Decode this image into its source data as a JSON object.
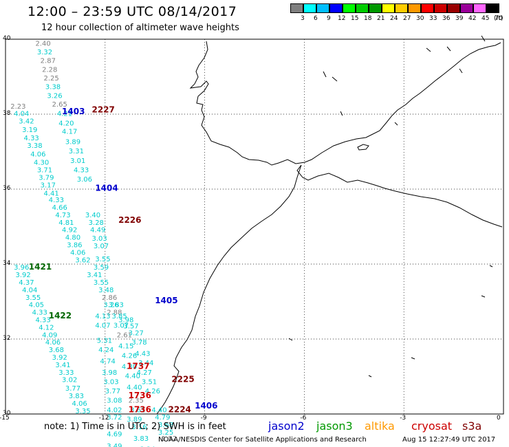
{
  "title": "12:00 – 23:59 UTC 08/14/2017",
  "subtitle": "12 hour collection of altimeter wave heights",
  "color_scale": {
    "unit": "(ft)",
    "bins": [
      {
        "label": "3",
        "color": "#7f7f7f"
      },
      {
        "label": "6",
        "color": "#00ffff"
      },
      {
        "label": "9",
        "color": "#00bfff"
      },
      {
        "label": "12",
        "color": "#0000ff"
      },
      {
        "label": "15",
        "color": "#00ff00"
      },
      {
        "label": "18",
        "color": "#00cc00"
      },
      {
        "label": "21",
        "color": "#009900"
      },
      {
        "label": "24",
        "color": "#ffff00"
      },
      {
        "label": "27",
        "color": "#ffcc00"
      },
      {
        "label": "30",
        "color": "#ff9900"
      },
      {
        "label": "33",
        "color": "#ff0000"
      },
      {
        "label": "36",
        "color": "#cc0000"
      },
      {
        "label": "39",
        "color": "#990000"
      },
      {
        "label": "42",
        "color": "#990099"
      },
      {
        "label": "45",
        "color": "#ff66ff"
      },
      {
        "label": "70",
        "color": "#000000"
      }
    ]
  },
  "axes": {
    "lat_ticks": [
      "40",
      "38",
      "36",
      "34",
      "32",
      "30"
    ],
    "lon_ticks": [
      "-15",
      "-12",
      "-9",
      "-6",
      "-3",
      "0"
    ]
  },
  "pass_times": [
    {
      "label": "1403",
      "color": "#0000cc",
      "lon": -13.3,
      "lat": 38.0
    },
    {
      "label": "2227",
      "color": "#800000",
      "lon": -12.4,
      "lat": 38.05
    },
    {
      "label": "1404",
      "color": "#0000cc",
      "lon": -12.3,
      "lat": 35.95
    },
    {
      "label": "2226",
      "color": "#800000",
      "lon": -11.6,
      "lat": 35.1
    },
    {
      "label": "1421",
      "color": "#006600",
      "lon": -14.3,
      "lat": 33.85
    },
    {
      "label": "1405",
      "color": "#0000cc",
      "lon": -10.5,
      "lat": 32.95
    },
    {
      "label": "1422",
      "color": "#006600",
      "lon": -13.7,
      "lat": 32.55
    },
    {
      "label": "1737",
      "color": "#cc0000",
      "lon": -11.35,
      "lat": 31.2
    },
    {
      "label": "2225",
      "color": "#800000",
      "lon": -10.0,
      "lat": 30.85
    },
    {
      "label": "1736",
      "color": "#cc0000",
      "lon": -11.3,
      "lat": 30.42
    },
    {
      "label": "1406",
      "color": "#0000cc",
      "lon": -9.3,
      "lat": 30.15
    },
    {
      "label": "1736",
      "color": "#cc0000",
      "lon": -11.3,
      "lat": 30.05
    },
    {
      "label": "2224",
      "color": "#800000",
      "lon": -10.1,
      "lat": 30.05
    }
  ],
  "wave_heights": [
    {
      "v": "2.40",
      "lon": -14.1,
      "lat": 39.83,
      "c": "#7f7f7f"
    },
    {
      "v": "3.32",
      "lon": -14.05,
      "lat": 39.6,
      "c": "#00cccc"
    },
    {
      "v": "2.87",
      "lon": -13.95,
      "lat": 39.37,
      "c": "#7f7f7f"
    },
    {
      "v": "2.28",
      "lon": -13.9,
      "lat": 39.13,
      "c": "#7f7f7f"
    },
    {
      "v": "2.25",
      "lon": -13.85,
      "lat": 38.9,
      "c": "#7f7f7f"
    },
    {
      "v": "3.38",
      "lon": -13.8,
      "lat": 38.67,
      "c": "#00cccc"
    },
    {
      "v": "3.26",
      "lon": -13.75,
      "lat": 38.43,
      "c": "#00cccc"
    },
    {
      "v": "2.65",
      "lon": -13.6,
      "lat": 38.2,
      "c": "#7f7f7f"
    },
    {
      "v": "2.23",
      "lon": -14.85,
      "lat": 38.15,
      "c": "#7f7f7f"
    },
    {
      "v": "4.04",
      "lon": -14.75,
      "lat": 37.95,
      "c": "#00cccc"
    },
    {
      "v": "4.21",
      "lon": -13.45,
      "lat": 37.95,
      "c": "#00cccc"
    },
    {
      "v": "3.42",
      "lon": -14.6,
      "lat": 37.75,
      "c": "#00cccc"
    },
    {
      "v": "4.20",
      "lon": -13.4,
      "lat": 37.7,
      "c": "#00cccc"
    },
    {
      "v": "3.19",
      "lon": -14.5,
      "lat": 37.52,
      "c": "#00cccc"
    },
    {
      "v": "4.17",
      "lon": -13.3,
      "lat": 37.48,
      "c": "#00cccc"
    },
    {
      "v": "4.33",
      "lon": -14.45,
      "lat": 37.3,
      "c": "#00cccc"
    },
    {
      "v": "3.38",
      "lon": -14.35,
      "lat": 37.1,
      "c": "#00cccc"
    },
    {
      "v": "3.89",
      "lon": -13.2,
      "lat": 37.2,
      "c": "#00cccc"
    },
    {
      "v": "4.06",
      "lon": -14.25,
      "lat": 36.87,
      "c": "#00cccc"
    },
    {
      "v": "3.31",
      "lon": -13.1,
      "lat": 36.95,
      "c": "#00cccc"
    },
    {
      "v": "4.30",
      "lon": -14.15,
      "lat": 36.65,
      "c": "#00cccc"
    },
    {
      "v": "3.01",
      "lon": -13.05,
      "lat": 36.7,
      "c": "#00cccc"
    },
    {
      "v": "3.71",
      "lon": -14.05,
      "lat": 36.45,
      "c": "#00cccc"
    },
    {
      "v": "4.33",
      "lon": -12.95,
      "lat": 36.45,
      "c": "#00cccc"
    },
    {
      "v": "3.79",
      "lon": -14.0,
      "lat": 36.25,
      "c": "#00cccc"
    },
    {
      "v": "3.17",
      "lon": -13.95,
      "lat": 36.05,
      "c": "#00cccc"
    },
    {
      "v": "3.06",
      "lon": -12.85,
      "lat": 36.2,
      "c": "#00cccc"
    },
    {
      "v": "4.41",
      "lon": -13.85,
      "lat": 35.83,
      "c": "#00cccc"
    },
    {
      "v": "4.33",
      "lon": -13.7,
      "lat": 35.65,
      "c": "#00cccc"
    },
    {
      "v": "4.66",
      "lon": -13.6,
      "lat": 35.45,
      "c": "#00cccc"
    },
    {
      "v": "4.73",
      "lon": -13.5,
      "lat": 35.25,
      "c": "#00cccc"
    },
    {
      "v": "3.40",
      "lon": -12.6,
      "lat": 35.25,
      "c": "#00cccc"
    },
    {
      "v": "4.81",
      "lon": -13.4,
      "lat": 35.05,
      "c": "#00cccc"
    },
    {
      "v": "3.28",
      "lon": -12.5,
      "lat": 35.05,
      "c": "#00cccc"
    },
    {
      "v": "4.92",
      "lon": -13.3,
      "lat": 34.85,
      "c": "#00cccc"
    },
    {
      "v": "4.49",
      "lon": -12.45,
      "lat": 34.85,
      "c": "#00cccc"
    },
    {
      "v": "4.80",
      "lon": -13.2,
      "lat": 34.65,
      "c": "#00cccc"
    },
    {
      "v": "3.03",
      "lon": -12.4,
      "lat": 34.62,
      "c": "#00cccc"
    },
    {
      "v": "3.86",
      "lon": -13.15,
      "lat": 34.45,
      "c": "#00cccc"
    },
    {
      "v": "3.07",
      "lon": -12.35,
      "lat": 34.42,
      "c": "#00cccc"
    },
    {
      "v": "4.06",
      "lon": -13.05,
      "lat": 34.25,
      "c": "#00cccc"
    },
    {
      "v": "3.62",
      "lon": -12.9,
      "lat": 34.05,
      "c": "#00cccc"
    },
    {
      "v": "3.55",
      "lon": -12.3,
      "lat": 34.07,
      "c": "#00cccc"
    },
    {
      "v": "3.59",
      "lon": -12.35,
      "lat": 33.85,
      "c": "#00cccc"
    },
    {
      "v": "3.41",
      "lon": -12.55,
      "lat": 33.65,
      "c": "#00cccc"
    },
    {
      "v": "3.55",
      "lon": -12.35,
      "lat": 33.45,
      "c": "#00cccc"
    },
    {
      "v": "3.48",
      "lon": -12.2,
      "lat": 33.25,
      "c": "#00cccc"
    },
    {
      "v": "2.86",
      "lon": -12.1,
      "lat": 33.05,
      "c": "#7f7f7f"
    },
    {
      "v": "3.26",
      "lon": -12.05,
      "lat": 32.85,
      "c": "#00cccc"
    },
    {
      "v": "3.83",
      "lon": -11.9,
      "lat": 32.85,
      "c": "#00cccc"
    },
    {
      "v": "2.88",
      "lon": -11.95,
      "lat": 32.65,
      "c": "#7f7f7f"
    },
    {
      "v": "3.85",
      "lon": -11.8,
      "lat": 32.55,
      "c": "#00cccc"
    },
    {
      "v": "4.13",
      "lon": -12.3,
      "lat": 32.55,
      "c": "#00cccc"
    },
    {
      "v": "3.98",
      "lon": -11.6,
      "lat": 32.45,
      "c": "#00cccc"
    },
    {
      "v": "4.07",
      "lon": -12.3,
      "lat": 32.3,
      "c": "#00cccc"
    },
    {
      "v": "3.07",
      "lon": -11.75,
      "lat": 32.3,
      "c": "#00cccc"
    },
    {
      "v": "3.57",
      "lon": -11.45,
      "lat": 32.28,
      "c": "#00cccc"
    },
    {
      "v": "2.61",
      "lon": -11.65,
      "lat": 32.05,
      "c": "#7f7f7f"
    },
    {
      "v": "3.27",
      "lon": -11.3,
      "lat": 32.1,
      "c": "#00cccc"
    },
    {
      "v": "5.31",
      "lon": -12.25,
      "lat": 31.9,
      "c": "#00cccc"
    },
    {
      "v": "3.78",
      "lon": -11.2,
      "lat": 31.85,
      "c": "#00cccc"
    },
    {
      "v": "4.15",
      "lon": -11.6,
      "lat": 31.75,
      "c": "#00cccc"
    },
    {
      "v": "4.24",
      "lon": -12.2,
      "lat": 31.65,
      "c": "#00cccc"
    },
    {
      "v": "4.26",
      "lon": -11.5,
      "lat": 31.5,
      "c": "#00cccc"
    },
    {
      "v": "4.43",
      "lon": -11.1,
      "lat": 31.55,
      "c": "#00cccc"
    },
    {
      "v": "4.74",
      "lon": -12.15,
      "lat": 31.35,
      "c": "#00cccc"
    },
    {
      "v": "3.44",
      "lon": -11.0,
      "lat": 31.3,
      "c": "#00cccc"
    },
    {
      "v": "4.30",
      "lon": -11.5,
      "lat": 31.2,
      "c": "#00cccc"
    },
    {
      "v": "4.27",
      "lon": -11.05,
      "lat": 31.05,
      "c": "#00cccc"
    },
    {
      "v": "3.98",
      "lon": -12.1,
      "lat": 31.05,
      "c": "#00cccc"
    },
    {
      "v": "4.40",
      "lon": -11.4,
      "lat": 30.95,
      "c": "#00cccc"
    },
    {
      "v": "3.51",
      "lon": -10.9,
      "lat": 30.8,
      "c": "#00cccc"
    },
    {
      "v": "3.03",
      "lon": -12.05,
      "lat": 30.8,
      "c": "#00cccc"
    },
    {
      "v": "4.40",
      "lon": -11.35,
      "lat": 30.65,
      "c": "#00cccc"
    },
    {
      "v": "4.26",
      "lon": -10.8,
      "lat": 30.55,
      "c": "#00cccc"
    },
    {
      "v": "3.77",
      "lon": -12.0,
      "lat": 30.55,
      "c": "#00cccc"
    },
    {
      "v": "2.35",
      "lon": -11.3,
      "lat": 30.3,
      "c": "#7f7f7f"
    },
    {
      "v": "3.08",
      "lon": -11.95,
      "lat": 30.3,
      "c": "#00cccc"
    },
    {
      "v": "4.40",
      "lon": -10.6,
      "lat": 30.05,
      "c": "#00cccc"
    },
    {
      "v": "3.61",
      "lon": -11.25,
      "lat": 30.05,
      "c": "#00cccc"
    },
    {
      "v": "4.02",
      "lon": -11.95,
      "lat": 30.05,
      "c": "#00cccc"
    },
    {
      "v": "4.79",
      "lon": -10.5,
      "lat": 29.85,
      "c": "#00cccc"
    },
    {
      "v": "3.72",
      "lon": -11.95,
      "lat": 29.85,
      "c": "#00cccc"
    },
    {
      "v": "3.89",
      "lon": -11.35,
      "lat": 29.8,
      "c": "#00cccc"
    },
    {
      "v": "3.68",
      "lon": -10.4,
      "lat": 29.65,
      "c": "#00cccc"
    },
    {
      "v": "3.16",
      "lon": -11.2,
      "lat": 29.6,
      "c": "#00cccc"
    },
    {
      "v": "3.25",
      "lon": -10.4,
      "lat": 29.45,
      "c": "#00cccc"
    },
    {
      "v": "4.69",
      "lon": -11.95,
      "lat": 29.4,
      "c": "#00cccc"
    },
    {
      "v": "1.52",
      "lon": -10.3,
      "lat": 29.28,
      "c": "#7f7f7f"
    },
    {
      "v": "3.83",
      "lon": -11.15,
      "lat": 29.28,
      "c": "#00cccc"
    },
    {
      "v": "3.49",
      "lon": -11.95,
      "lat": 29.08,
      "c": "#00cccc"
    },
    {
      "v": "3.24",
      "lon": -10.95,
      "lat": 29.0,
      "c": "#00cccc"
    },
    {
      "v": "3.96",
      "lon": -14.75,
      "lat": 33.85,
      "c": "#00cccc"
    },
    {
      "v": "3.92",
      "lon": -14.7,
      "lat": 33.65,
      "c": "#00cccc"
    },
    {
      "v": "4.37",
      "lon": -14.6,
      "lat": 33.45,
      "c": "#00cccc"
    },
    {
      "v": "4.04",
      "lon": -14.5,
      "lat": 33.25,
      "c": "#00cccc"
    },
    {
      "v": "3.55",
      "lon": -14.4,
      "lat": 33.05,
      "c": "#00cccc"
    },
    {
      "v": "4.05",
      "lon": -14.3,
      "lat": 32.85,
      "c": "#00cccc"
    },
    {
      "v": "4.33",
      "lon": -14.2,
      "lat": 32.65,
      "c": "#00cccc"
    },
    {
      "v": "4.33",
      "lon": -14.1,
      "lat": 32.45,
      "c": "#00cccc"
    },
    {
      "v": "4.12",
      "lon": -14.0,
      "lat": 32.25,
      "c": "#00cccc"
    },
    {
      "v": "4.09",
      "lon": -13.9,
      "lat": 32.05,
      "c": "#00cccc"
    },
    {
      "v": "4.06",
      "lon": -13.8,
      "lat": 31.85,
      "c": "#00cccc"
    },
    {
      "v": "3.68",
      "lon": -13.7,
      "lat": 31.65,
      "c": "#00cccc"
    },
    {
      "v": "3.92",
      "lon": -13.6,
      "lat": 31.45,
      "c": "#00cccc"
    },
    {
      "v": "3.41",
      "lon": -13.5,
      "lat": 31.25,
      "c": "#00cccc"
    },
    {
      "v": "3.33",
      "lon": -13.4,
      "lat": 31.05,
      "c": "#00cccc"
    },
    {
      "v": "3.02",
      "lon": -13.3,
      "lat": 30.85,
      "c": "#00cccc"
    },
    {
      "v": "3.77",
      "lon": -13.2,
      "lat": 30.62,
      "c": "#00cccc"
    },
    {
      "v": "3.83",
      "lon": -13.1,
      "lat": 30.42,
      "c": "#00cccc"
    },
    {
      "v": "4.06",
      "lon": -13.0,
      "lat": 30.22,
      "c": "#00cccc"
    },
    {
      "v": "3.35",
      "lon": -12.9,
      "lat": 30.02,
      "c": "#00cccc"
    }
  ],
  "note": "note: 1) Time is in UTC; 2) SWH is in feet",
  "satellites": [
    {
      "name": "jason2",
      "color": "#0000cc"
    },
    {
      "name": "jason3",
      "color": "#009900"
    },
    {
      "name": "altika",
      "color": "#ff9900"
    },
    {
      "name": "cryosat",
      "color": "#cc0000"
    },
    {
      "name": "s3a",
      "color": "#800000"
    }
  ],
  "credit": "NOAA/NESDIS Center for Satellite Applications and Research",
  "timestamp": "Aug 15 12:27:49 UTC 2017"
}
